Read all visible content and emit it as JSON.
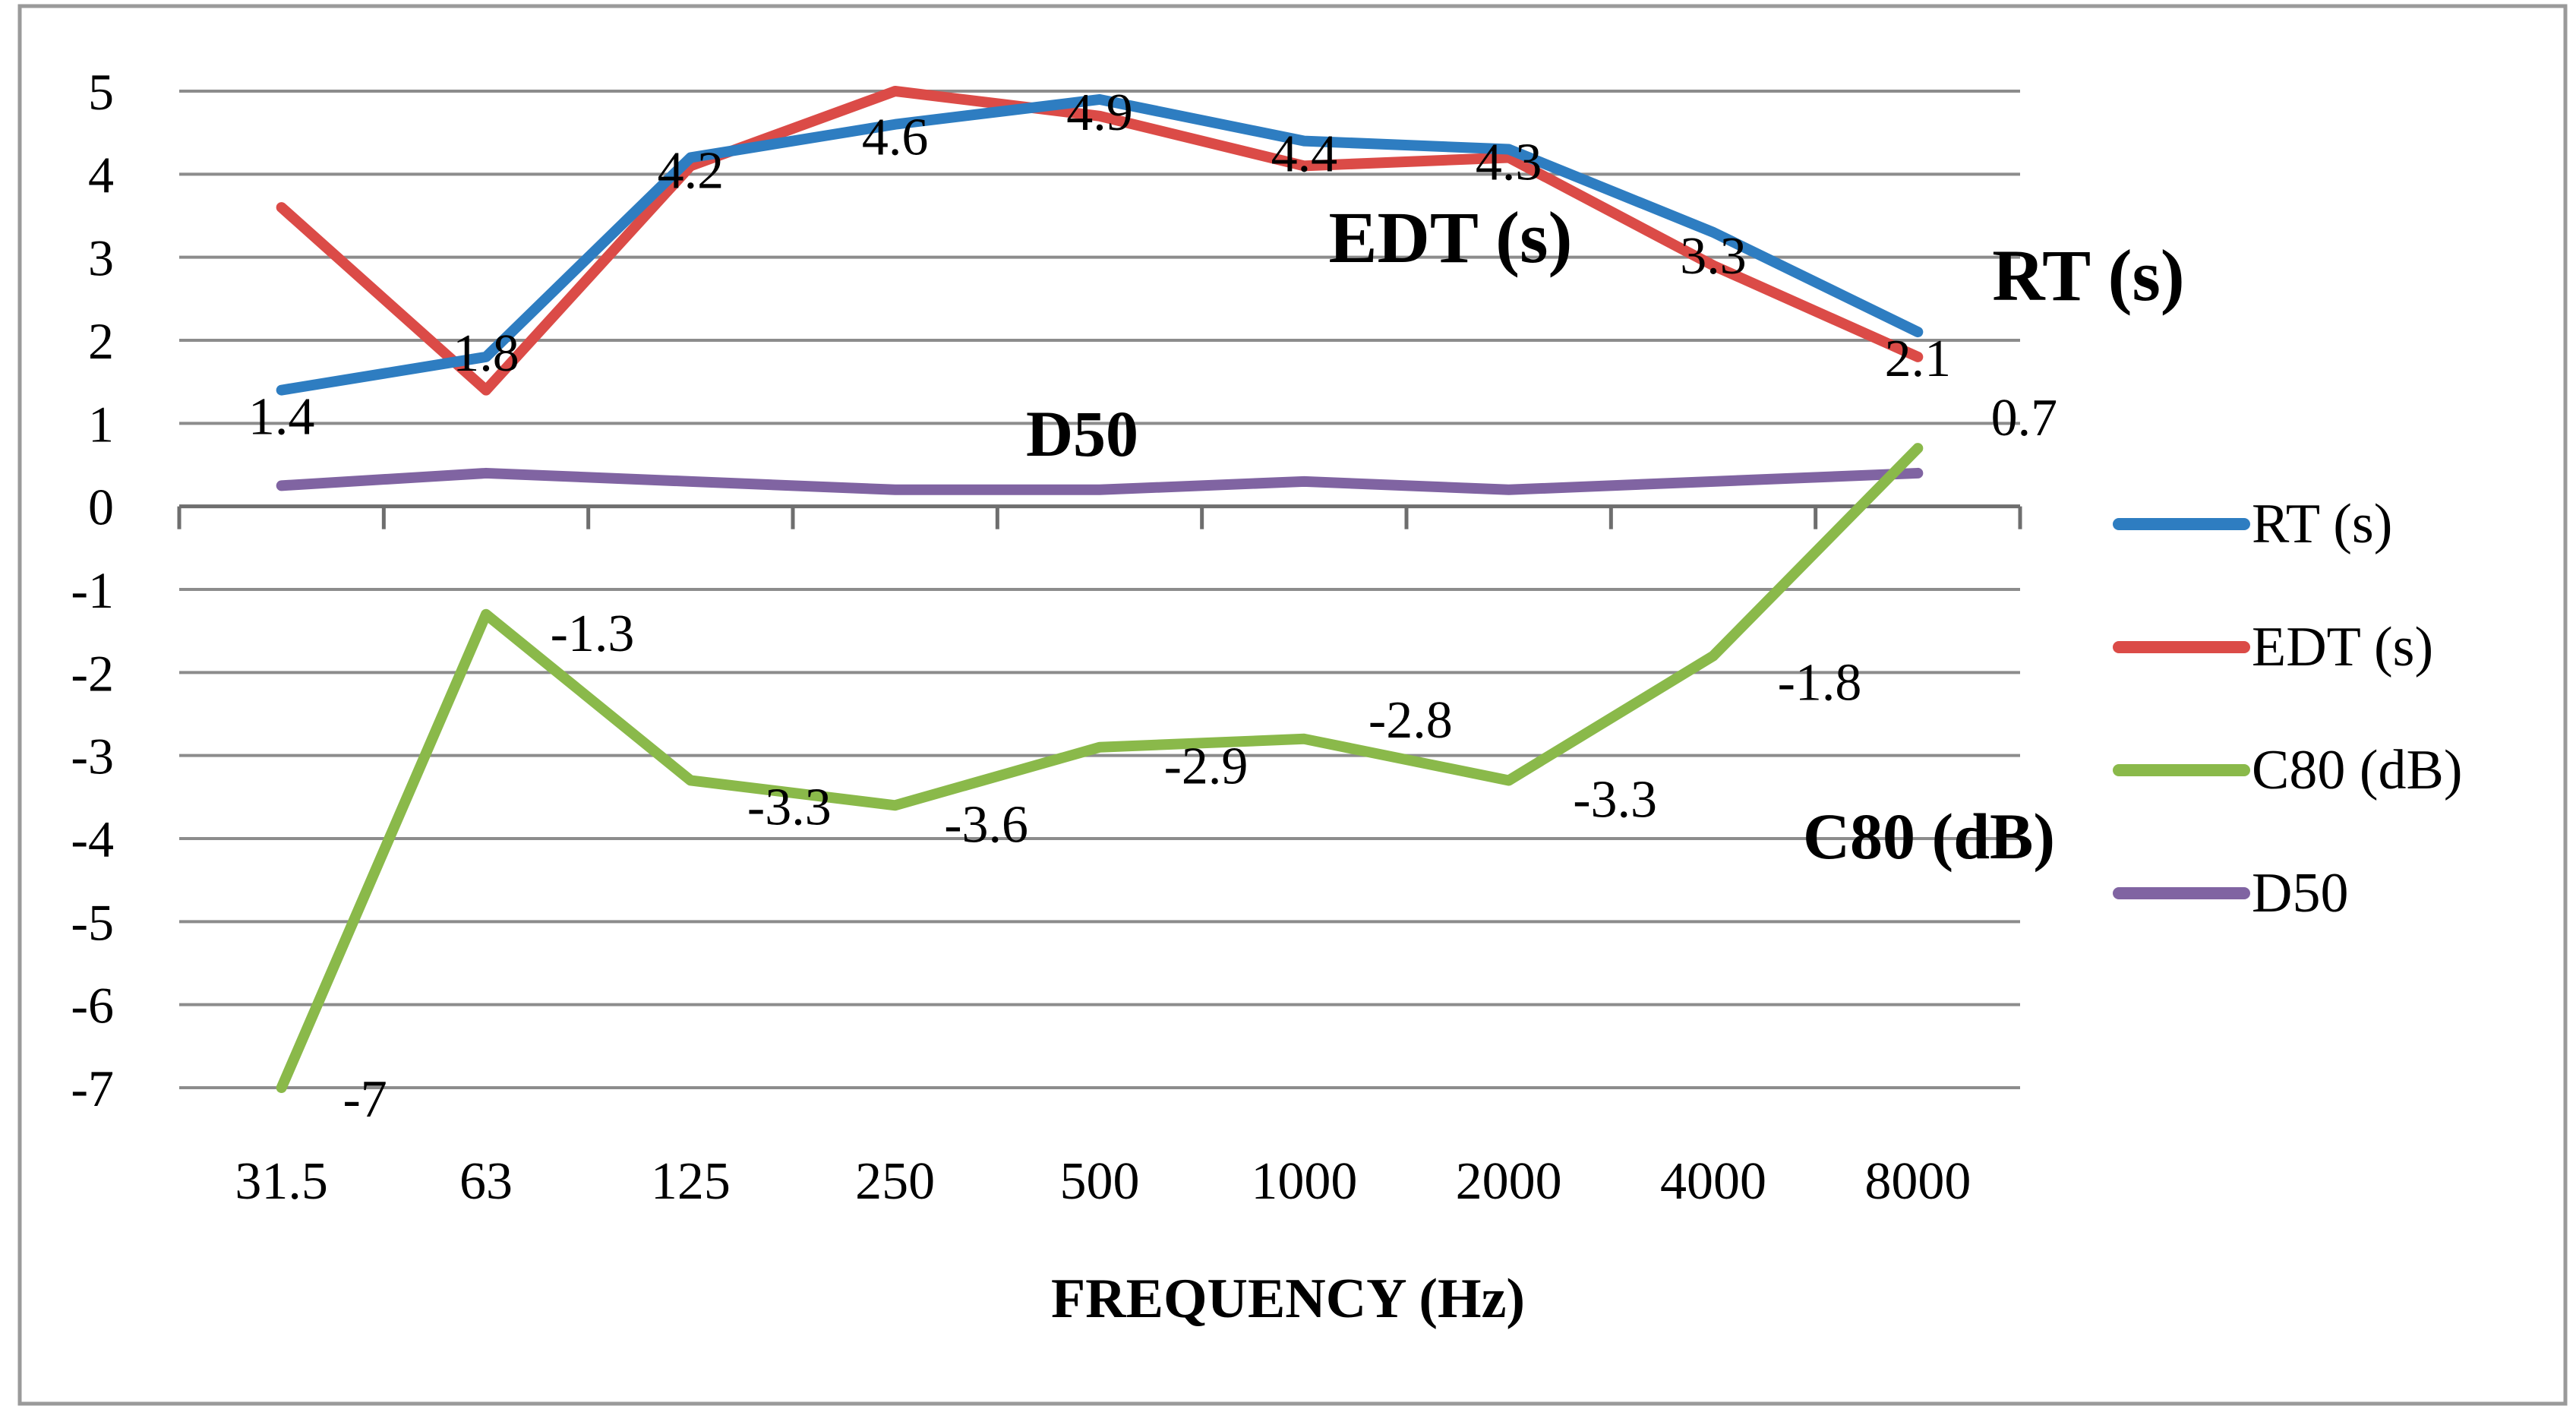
{
  "chart_data": {
    "type": "line",
    "title": "",
    "xlabel": "FREQUENCY (Hz)",
    "ylabel": "",
    "ylim": [
      -7,
      5
    ],
    "yticks": [
      "5",
      "4",
      "3",
      "2",
      "1",
      "0",
      "-1",
      "-2",
      "-3",
      "-4",
      "-5",
      "-6",
      "-7"
    ],
    "grid": true,
    "legend_position": "right",
    "categories": [
      "31.5",
      "63",
      "125",
      "250",
      "500",
      "1000",
      "2000",
      "4000",
      "8000"
    ],
    "series": [
      {
        "name": "RT (s)",
        "color": "#2e7dc1",
        "values": [
          1.4,
          1.8,
          4.2,
          4.6,
          4.9,
          4.4,
          4.3,
          3.3,
          2.1
        ],
        "labels": [
          "1.4",
          "1.8",
          "4.2",
          "4.6",
          "4.9",
          "4.4",
          "4.3",
          "3.3",
          "2.1"
        ]
      },
      {
        "name": "EDT (s)",
        "color": "#db4b47",
        "values": [
          3.6,
          1.4,
          4.1,
          5.0,
          4.7,
          4.1,
          4.2,
          2.9,
          1.8
        ],
        "labels": []
      },
      {
        "name": "C80 (dB)",
        "color": "#8ab94a",
        "values": [
          -7,
          -1.3,
          -3.3,
          -3.6,
          -2.9,
          -2.8,
          -3.3,
          -1.8,
          0.7
        ],
        "labels": [
          "-7",
          "-1.3",
          "-3.3",
          "-3.6",
          "-2.9",
          "-2.8",
          "-3.3",
          "-1.8",
          "0.7"
        ]
      },
      {
        "name": "D50",
        "color": "#8064a2",
        "values": [
          0.25,
          0.4,
          0.3,
          0.2,
          0.2,
          0.3,
          0.2,
          0.3,
          0.4
        ],
        "labels": []
      }
    ],
    "annotations": [
      "EDT (s)",
      "RT (s)",
      "D50",
      "C80 (dB)"
    ]
  }
}
